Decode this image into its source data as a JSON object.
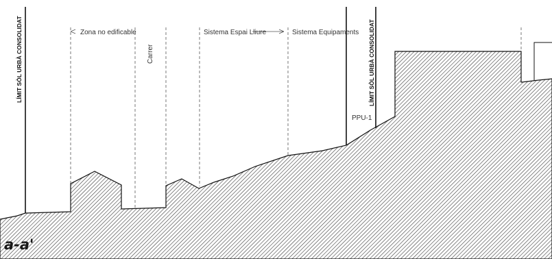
{
  "section_label": "a-a'",
  "labels": {
    "limit_left": "LÍMIT SÒL URBÀ CONSOLIDAT",
    "limit_right": "LÍMIT SÒL URBÀ CONSOLIDAT",
    "zona": "Zona no edificable",
    "carrer": "Carrer",
    "espai": "Sistema Espai Lliure",
    "equip": "Sistema Equipaments",
    "ppu": "PPU-1"
  },
  "colors": {
    "line": "#111111",
    "hatch": "#333333",
    "background": "#ffffff"
  }
}
